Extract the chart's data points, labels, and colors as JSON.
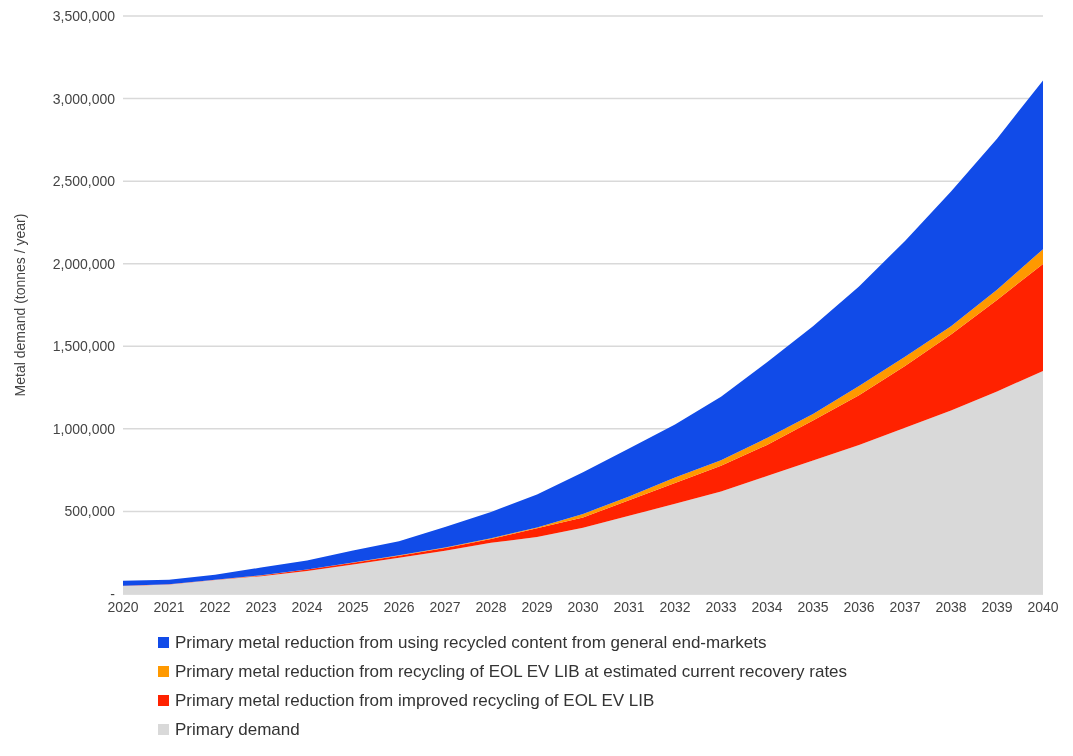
{
  "chart_data": {
    "type": "area",
    "ylabel": "Metal demand (tonnes / year)",
    "stacked": true,
    "categories": [
      "2020",
      "2021",
      "2022",
      "2023",
      "2024",
      "2025",
      "2026",
      "2027",
      "2028",
      "2029",
      "2030",
      "2031",
      "2032",
      "2033",
      "2034",
      "2035",
      "2036",
      "2037",
      "2038",
      "2039",
      "2040"
    ],
    "series": [
      {
        "name": "Primary demand",
        "color": "#d9d9d9",
        "values": [
          49000,
          58000,
          85000,
          108000,
          140000,
          178000,
          219000,
          262000,
          310000,
          345000,
          401000,
          474000,
          546000,
          620000,
          714000,
          808000,
          903000,
          1007000,
          1111000,
          1226000,
          1351000
        ]
      },
      {
        "name": "Primary metal reduction from improved recycling of EOL EV LIB",
        "color": "#ff2200",
        "values": [
          1000,
          1000,
          2000,
          4000,
          8000,
          11000,
          13000,
          16000,
          23000,
          53000,
          62000,
          94000,
          126000,
          157000,
          189000,
          242000,
          301000,
          374000,
          461000,
          555000,
          648000
        ]
      },
      {
        "name": "Primary metal reduction from recycling of EOL EV LIB at estimated current recovery rates",
        "color": "#ff9900",
        "values": [
          0,
          0,
          0,
          1000,
          1000,
          2000,
          2000,
          3000,
          4000,
          5000,
          22000,
          22000,
          34000,
          33000,
          42000,
          40000,
          55000,
          56000,
          49000,
          61000,
          89000
        ]
      },
      {
        "name": "Primary metal reduction from using recycled content from general end-markets",
        "color": "#114be8",
        "values": [
          30000,
          27000,
          30000,
          47000,
          54000,
          73000,
          85000,
          124000,
          160000,
          199000,
          252000,
          291000,
          321000,
          384000,
          458000,
          532000,
          603000,
          701000,
          816000,
          915000,
          1022000
        ]
      }
    ],
    "ylim": [
      0,
      3500000
    ],
    "yticks": [
      {
        "value": 0,
        "label": "-"
      },
      {
        "value": 500000,
        "label": "500,000"
      },
      {
        "value": 1000000,
        "label": "1,000,000"
      },
      {
        "value": 1500000,
        "label": "1,500,000"
      },
      {
        "value": 2000000,
        "label": "2,000,000"
      },
      {
        "value": 2500000,
        "label": "2,500,000"
      },
      {
        "value": 3000000,
        "label": "3,000,000"
      },
      {
        "value": 3500000,
        "label": "3,500,000"
      }
    ],
    "grid": "y",
    "legend": "bottom"
  }
}
